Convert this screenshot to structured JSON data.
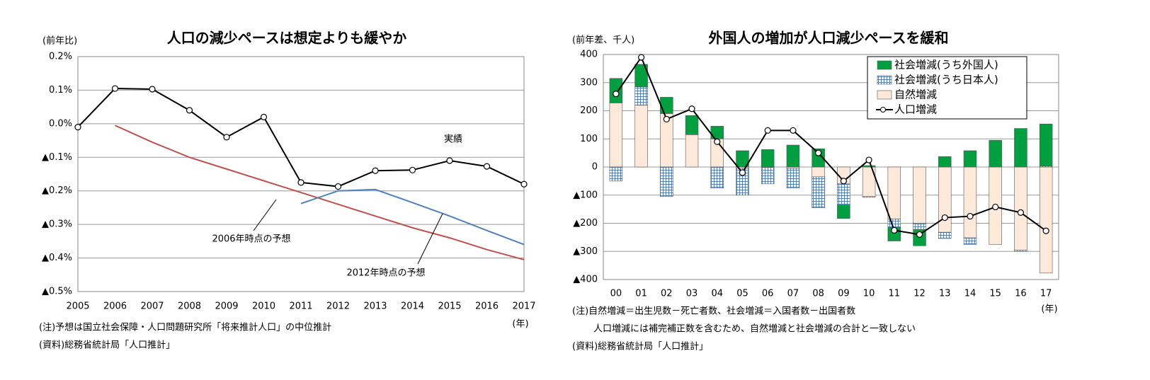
{
  "chart_data": [
    {
      "type": "line",
      "title": "人口の減少ペースは想定よりも緩やか",
      "y_label": "(前年比)",
      "x_label": "(年)",
      "x": [
        2005,
        2006,
        2007,
        2008,
        2009,
        2010,
        2011,
        2012,
        2013,
        2014,
        2015,
        2016,
        2017
      ],
      "series": [
        {
          "name": "実績",
          "color": "#000000",
          "markers": true,
          "values": [
            -0.01,
            0.105,
            0.103,
            0.04,
            -0.04,
            0.02,
            -0.175,
            -0.187,
            -0.14,
            -0.138,
            -0.11,
            -0.127,
            -0.18
          ]
        },
        {
          "name": "2006年時点の予想",
          "color": "#c0504d",
          "values": [
            null,
            -0.005,
            -0.055,
            -0.1,
            -0.135,
            -0.17,
            -0.205,
            -0.24,
            -0.275,
            -0.31,
            -0.34,
            -0.375,
            -0.405
          ]
        },
        {
          "name": "2012年時点の予想",
          "color": "#4f81bd",
          "values": [
            null,
            null,
            null,
            null,
            null,
            null,
            -0.238,
            -0.2,
            -0.196,
            -0.235,
            -0.275,
            -0.318,
            -0.36
          ]
        }
      ],
      "xlim": [
        2005,
        2017
      ],
      "xticks": [
        2005,
        2006,
        2007,
        2008,
        2009,
        2010,
        2011,
        2012,
        2013,
        2014,
        2015,
        2016,
        2017
      ],
      "ylim": [
        -0.5,
        0.2
      ],
      "yticks": [
        {
          "value": -0.5,
          "label": "▲0.5%"
        },
        {
          "value": -0.4,
          "label": "▲0.4%"
        },
        {
          "value": -0.3,
          "label": "▲0.3%"
        },
        {
          "value": -0.2,
          "label": "▲0.2%"
        },
        {
          "value": -0.1,
          "label": "▲0.1%"
        },
        {
          "value": 0,
          "label": "0.0%"
        },
        {
          "value": 0.1,
          "label": "0.1%"
        },
        {
          "value": 0.2,
          "label": "0.2%"
        }
      ],
      "grid": true,
      "notes": [
        "(注)予想は国立社会保障・人口問題研究所「将来推計人口」の中位推計",
        "(資料)総務省統計局「人口推計」"
      ]
    },
    {
      "type": "bar",
      "stacked": true,
      "title": "外国人の増加が人口減少ペースを緩和",
      "y_label": "(前年差、千人)",
      "x_label": "(年)",
      "categories": [
        "00",
        "01",
        "02",
        "03",
        "04",
        "05",
        "06",
        "07",
        "08",
        "09",
        "10",
        "11",
        "12",
        "13",
        "14",
        "15",
        "16",
        "17"
      ],
      "series": [
        {
          "name": "自然増減",
          "type": "bar",
          "color": "#fde9d9",
          "values": [
            228,
            220,
            190,
            115,
            100,
            -5,
            -2,
            -5,
            -35,
            -60,
            -105,
            -185,
            -200,
            -232,
            -252,
            -275,
            -296,
            -377
          ]
        },
        {
          "name": "社会増減(うち日本人)",
          "type": "bar",
          "color": "#4f81bd",
          "hatch": true,
          "values": [
            -50,
            65,
            -105,
            0,
            -75,
            -95,
            -58,
            -70,
            -110,
            -75,
            -3,
            -30,
            -22,
            -22,
            -23,
            0,
            -4,
            3
          ]
        },
        {
          "name": "社会増減(うち外国人)",
          "type": "bar",
          "color": "#00a040",
          "values": [
            87,
            80,
            58,
            68,
            45,
            58,
            62,
            78,
            65,
            -48,
            5,
            -48,
            -58,
            37,
            58,
            95,
            137,
            150
          ]
        },
        {
          "name": "人口増減",
          "type": "line",
          "color": "#000000",
          "markers": true,
          "values": [
            260,
            390,
            170,
            207,
            90,
            -20,
            130,
            130,
            50,
            -50,
            25,
            -225,
            -240,
            -180,
            -175,
            -142,
            -162,
            -227
          ]
        }
      ],
      "legend_order": [
        2,
        1,
        0,
        3
      ],
      "ylim": [
        -400,
        400
      ],
      "yticks": [
        {
          "value": -400,
          "label": "▲400"
        },
        {
          "value": -300,
          "label": "▲300"
        },
        {
          "value": -200,
          "label": "▲200"
        },
        {
          "value": -100,
          "label": "▲100"
        },
        0,
        100,
        200,
        300,
        400
      ],
      "grid": true,
      "legend": "upper right",
      "notes": [
        "(注)自然増減＝出生児数－死亡者数、社会増減＝入国者数－出国者数",
        "人口増減には補完補正数を含むため、自然増減と社会増減の合計と一致しない",
        "(資料)総務省統計局「人口推計」"
      ]
    }
  ]
}
